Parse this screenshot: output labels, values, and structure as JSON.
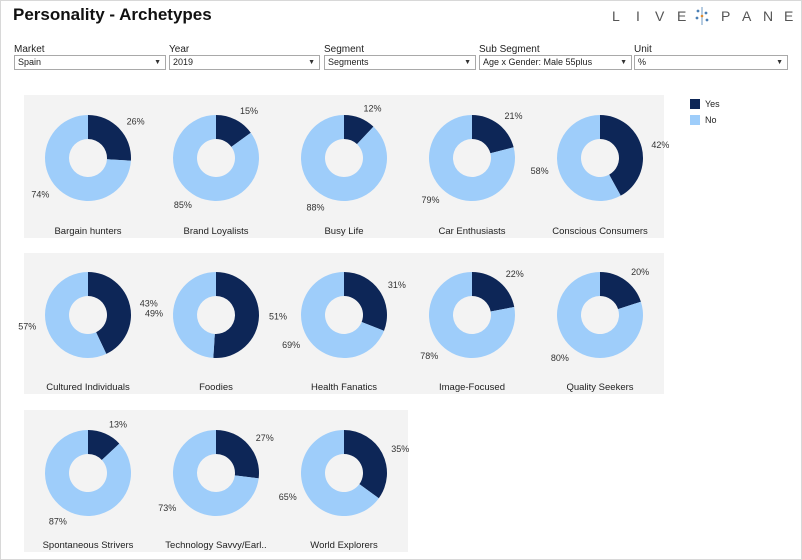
{
  "title": "Personality - Archetypes",
  "logo_text": "LIVEPANEL",
  "filters": [
    {
      "label": "Market",
      "value": "Spain"
    },
    {
      "label": "Year",
      "value": "2019"
    },
    {
      "label": "Segment",
      "value": "Segments"
    },
    {
      "label": "Sub Segment",
      "value": "Age x Gender: Male 55plus"
    },
    {
      "label": "Unit",
      "value": "%"
    }
  ],
  "colors": {
    "yes": "#0d2657",
    "no": "#9ecdfa"
  },
  "legend": [
    {
      "label": "Yes",
      "color": "#0d2657"
    },
    {
      "label": "No",
      "color": "#9ecdfa"
    }
  ],
  "chart_data": {
    "type": "pie",
    "donut": true,
    "series_names": [
      "Yes",
      "No"
    ],
    "legend_position": "top-right",
    "charts": [
      {
        "name": "Bargain hunters",
        "yes": 26,
        "no": 74
      },
      {
        "name": "Brand Loyalists",
        "yes": 15,
        "no": 85
      },
      {
        "name": "Busy Life",
        "yes": 12,
        "no": 88
      },
      {
        "name": "Car Enthusiasts",
        "yes": 21,
        "no": 79
      },
      {
        "name": "Conscious Consumers",
        "yes": 42,
        "no": 58
      },
      {
        "name": "Cultured Individuals",
        "yes": 43,
        "no": 57
      },
      {
        "name": "Foodies",
        "yes": 51,
        "no": 49
      },
      {
        "name": "Health Fanatics",
        "yes": 31,
        "no": 69
      },
      {
        "name": "Image-Focused",
        "yes": 22,
        "no": 78
      },
      {
        "name": "Quality Seekers",
        "yes": 20,
        "no": 80
      },
      {
        "name": "Spontaneous Strivers",
        "yes": 13,
        "no": 87
      },
      {
        "name": "Technology Savvy/Earl..",
        "yes": 27,
        "no": 73
      },
      {
        "name": "World Explorers",
        "yes": 35,
        "no": 65
      }
    ]
  }
}
